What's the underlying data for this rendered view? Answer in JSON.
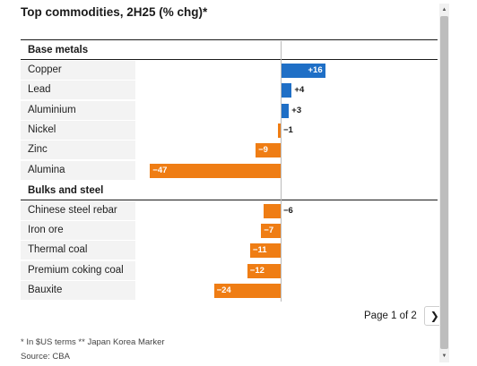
{
  "chart_data": {
    "type": "bar",
    "orientation": "horizontal",
    "title": "Top commodities, 2H25 (% chg)*",
    "groups": [
      {
        "name": "Base metals",
        "categories": [
          "Copper",
          "Lead",
          "Aluminium",
          "Nickel",
          "Zinc",
          "Alumina"
        ],
        "values": [
          16,
          4,
          3,
          -1,
          -9,
          -47
        ],
        "labels": [
          "+16",
          "+4",
          "+3",
          "−1",
          "−9",
          "−47"
        ]
      },
      {
        "name": "Bulks and steel",
        "categories": [
          "Chinese steel rebar",
          "Iron ore",
          "Thermal coal",
          "Premium coking coal",
          "Bauxite"
        ],
        "values": [
          -6,
          -7,
          -11,
          -12,
          -24
        ],
        "labels": [
          "−6",
          "−7",
          "−11",
          "−12",
          "−24"
        ]
      }
    ],
    "xlim": [
      -55,
      55
    ],
    "colors": {
      "positive": "#1f6fc6",
      "negative": "#ef7d14"
    }
  },
  "pagination": {
    "text": "Page 1 of 2",
    "next_icon": "chevron-right-icon"
  },
  "footnote": "* In $US terms ** Japan Korea Marker",
  "source": "Source: CBA"
}
